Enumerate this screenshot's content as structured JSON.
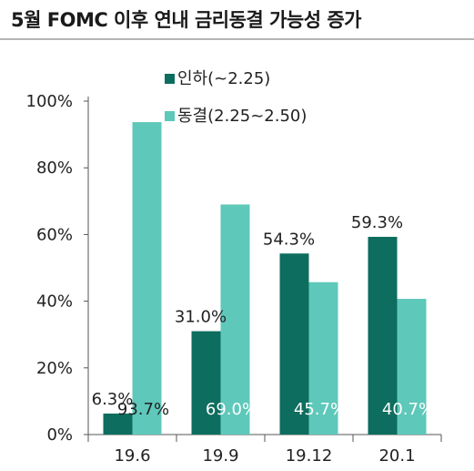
{
  "title": "5월 FOMC 이후 연내 금리동결 가능성 증가",
  "colors": {
    "series1": "#0d6d5e",
    "series2": "#5ec8ba",
    "axis": "#555555"
  },
  "chart_data": {
    "type": "bar",
    "categories": [
      "19.6",
      "19.9",
      "19.12",
      "20.1"
    ],
    "series": [
      {
        "name": "인하(~2.25)",
        "values": [
          6.3,
          31.0,
          54.3,
          59.3
        ],
        "labels": [
          "6.3%",
          "31.0%",
          "54.3%",
          "59.3%"
        ]
      },
      {
        "name": "동결(2.25~2.50)",
        "values": [
          93.7,
          69.0,
          45.7,
          40.7
        ],
        "labels": [
          "93.7%",
          "69.0%",
          "45.7%",
          "40.7%"
        ]
      }
    ],
    "ylim": [
      0,
      100
    ],
    "yticks": [
      0,
      20,
      40,
      60,
      80,
      100
    ],
    "ytick_labels": [
      "0%",
      "20%",
      "40%",
      "60%",
      "80%",
      "100%"
    ],
    "legend": "top-center",
    "grid": false
  }
}
